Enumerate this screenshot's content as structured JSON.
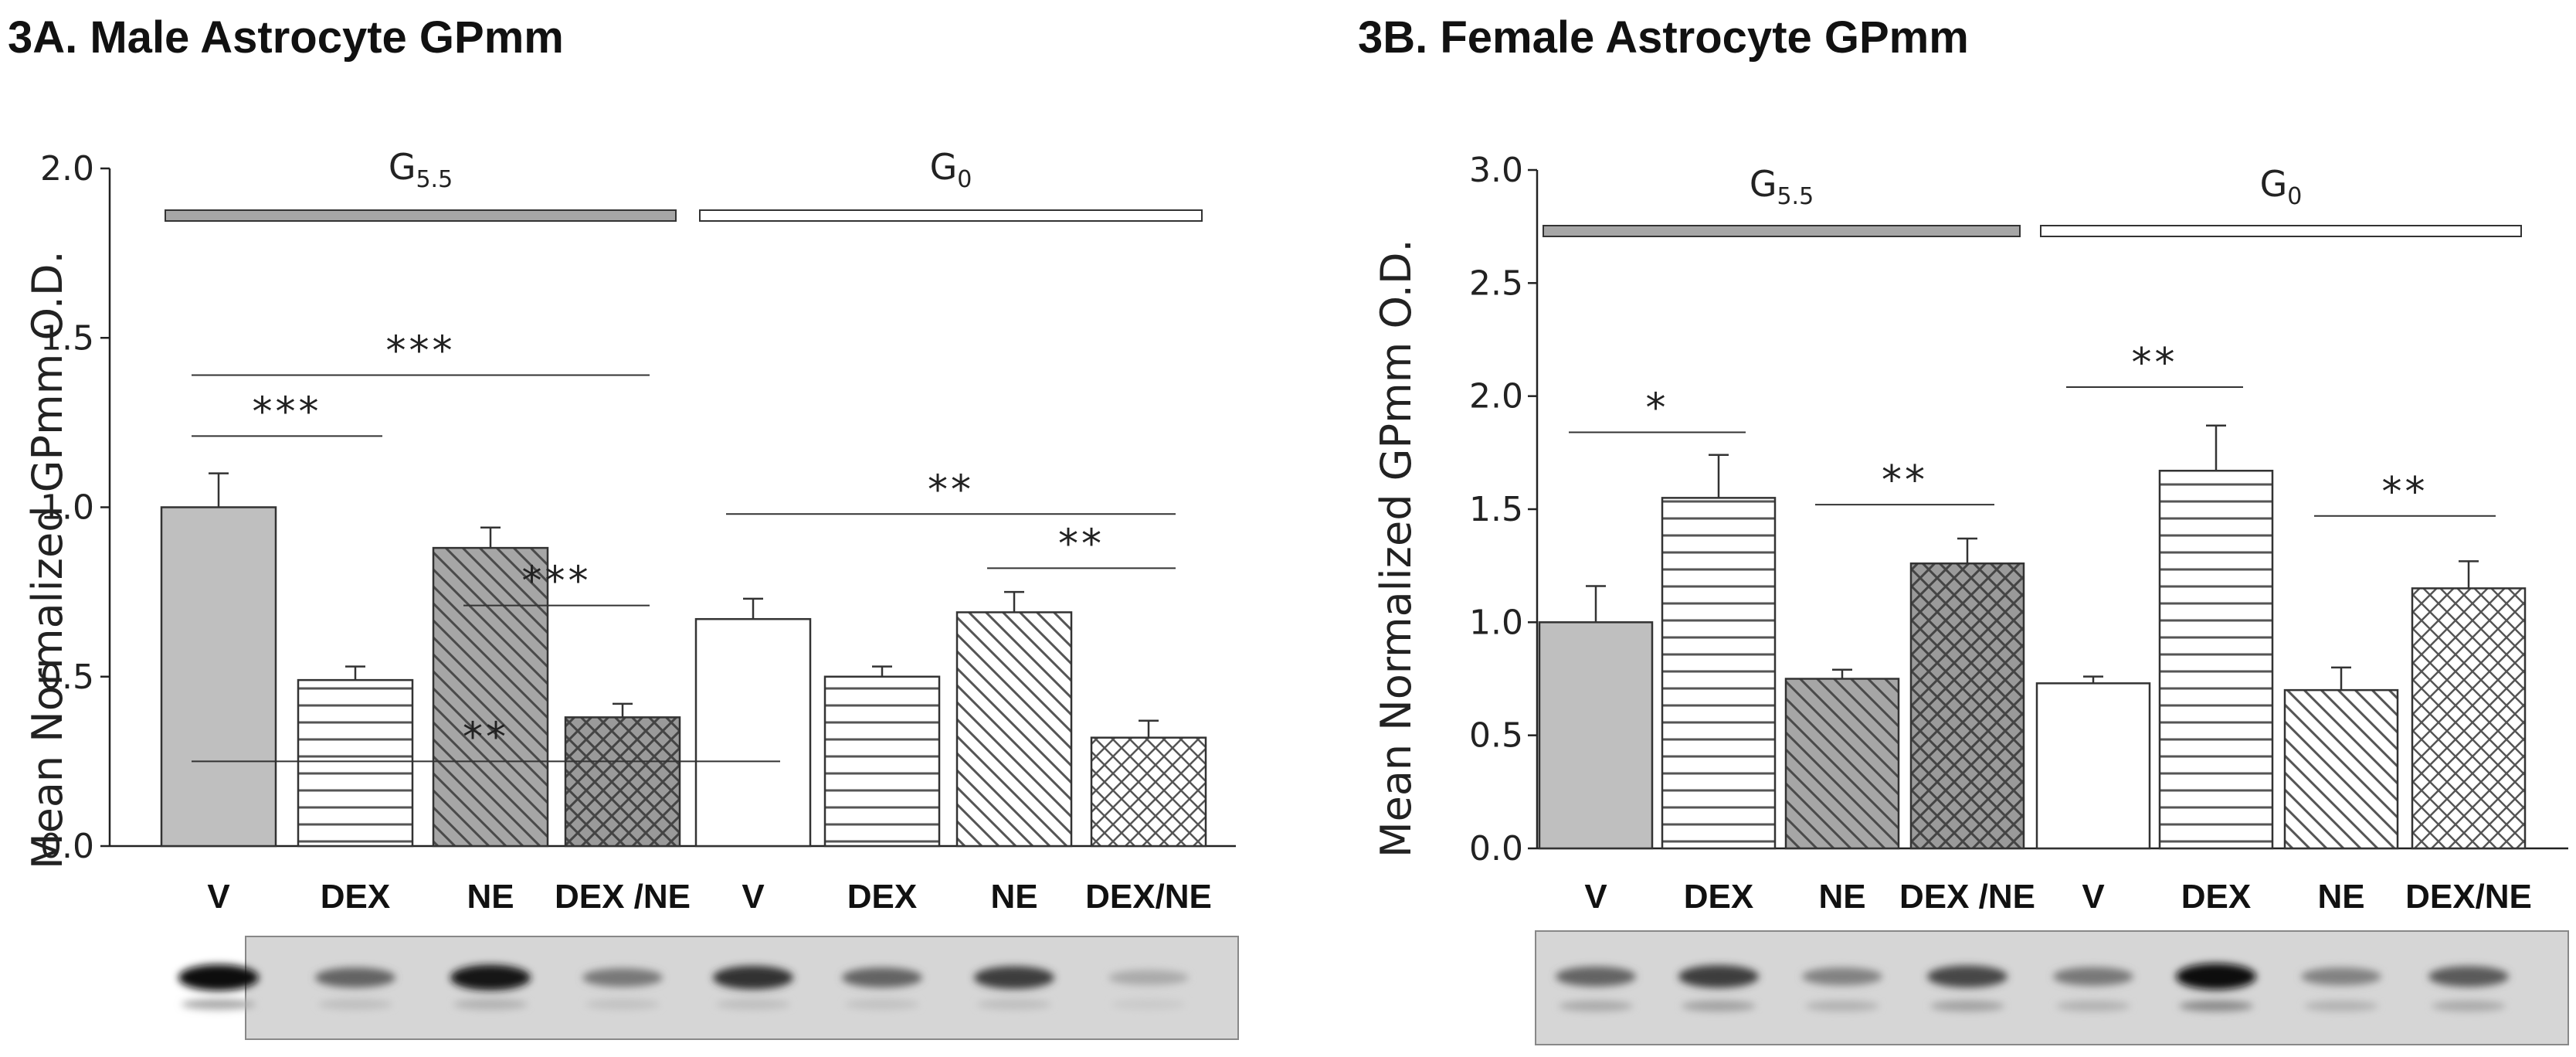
{
  "chart_data": [
    {
      "panel": "A",
      "type": "bar",
      "title": "3A.  Male Astrocyte GPmm",
      "ylabel": "Mean Normalized GPmm O.D.",
      "ylim": [
        0,
        2.0
      ],
      "yticks": [
        "0.0",
        "0.5",
        "1.0",
        "1.5",
        "2.0"
      ],
      "categories": [
        "V",
        "DEX",
        "NE",
        "DEX /NE",
        "V",
        "DEX",
        "NE",
        "DEX/NE"
      ],
      "values": [
        1.0,
        0.49,
        0.88,
        0.38,
        0.67,
        0.5,
        0.69,
        0.32
      ],
      "errors": [
        0.1,
        0.04,
        0.06,
        0.04,
        0.06,
        0.03,
        0.06,
        0.05
      ],
      "patterns": [
        "solid-gray",
        "hlines",
        "diag-gray",
        "cross-gray",
        "solid-white",
        "hlines",
        "diag-white",
        "cross-white"
      ],
      "groups": [
        {
          "label": "G",
          "sub": "5.5",
          "fill": "#a6a6a6",
          "from": 0,
          "to": 3
        },
        {
          "label": "G",
          "sub": "0",
          "fill": "#ffffff",
          "from": 4,
          "to": 7
        }
      ],
      "significance": [
        {
          "label": "***",
          "from": 0,
          "to": 3,
          "y": 1.39
        },
        {
          "label": "***",
          "from": 0,
          "to": 1,
          "y": 1.21
        },
        {
          "label": "***",
          "from": 2,
          "to": 3,
          "y": 0.71
        },
        {
          "label": "**",
          "from": 0,
          "to": 4,
          "y": 0.25
        },
        {
          "label": "**",
          "from": 4,
          "to": 7,
          "y": 0.98
        },
        {
          "label": "**",
          "from": 6,
          "to": 7,
          "y": 0.82
        }
      ],
      "western_blot": {
        "lanes": 8,
        "upper_band_intensity": [
          1.0,
          0.55,
          0.95,
          0.45,
          0.8,
          0.55,
          0.75,
          0.2
        ],
        "lower_band_intensity": [
          0.25,
          0.12,
          0.2,
          0.1,
          0.12,
          0.1,
          0.12,
          0.05
        ]
      }
    },
    {
      "panel": "B",
      "type": "bar",
      "title": "3B.  Female Astrocyte GPmm",
      "ylabel": "Mean Normalized GPmm O.D.",
      "ylim": [
        0,
        3.0
      ],
      "yticks": [
        "0.0",
        "0.5",
        "1.0",
        "1.5",
        "2.0",
        "2.5",
        "3.0"
      ],
      "categories": [
        "V",
        "DEX",
        "NE",
        "DEX /NE",
        "V",
        "DEX",
        "NE",
        "DEX/NE"
      ],
      "values": [
        1.0,
        1.55,
        0.75,
        1.26,
        0.73,
        1.67,
        0.7,
        1.15
      ],
      "errors": [
        0.16,
        0.19,
        0.04,
        0.11,
        0.03,
        0.2,
        0.1,
        0.12
      ],
      "patterns": [
        "solid-gray",
        "hlines",
        "diag-gray",
        "cross-gray",
        "solid-white",
        "hlines",
        "diag-white",
        "cross-white"
      ],
      "groups": [
        {
          "label": "G",
          "sub": "5.5",
          "fill": "#a6a6a6",
          "from": 0,
          "to": 3
        },
        {
          "label": "G",
          "sub": "0",
          "fill": "#ffffff",
          "from": 4,
          "to": 7
        }
      ],
      "significance": [
        {
          "label": "*",
          "from": 0,
          "to": 1,
          "y": 1.84
        },
        {
          "label": "**",
          "from": 2,
          "to": 3,
          "y": 1.52
        },
        {
          "label": "**",
          "from": 4,
          "to": 5,
          "y": 2.04
        },
        {
          "label": "**",
          "from": 6,
          "to": 7,
          "y": 1.47
        }
      ],
      "western_blot": {
        "lanes": 8,
        "upper_band_intensity": [
          0.55,
          0.75,
          0.4,
          0.7,
          0.45,
          1.0,
          0.4,
          0.6
        ],
        "lower_band_intensity": [
          0.25,
          0.3,
          0.2,
          0.3,
          0.2,
          0.45,
          0.2,
          0.25
        ]
      }
    }
  ]
}
